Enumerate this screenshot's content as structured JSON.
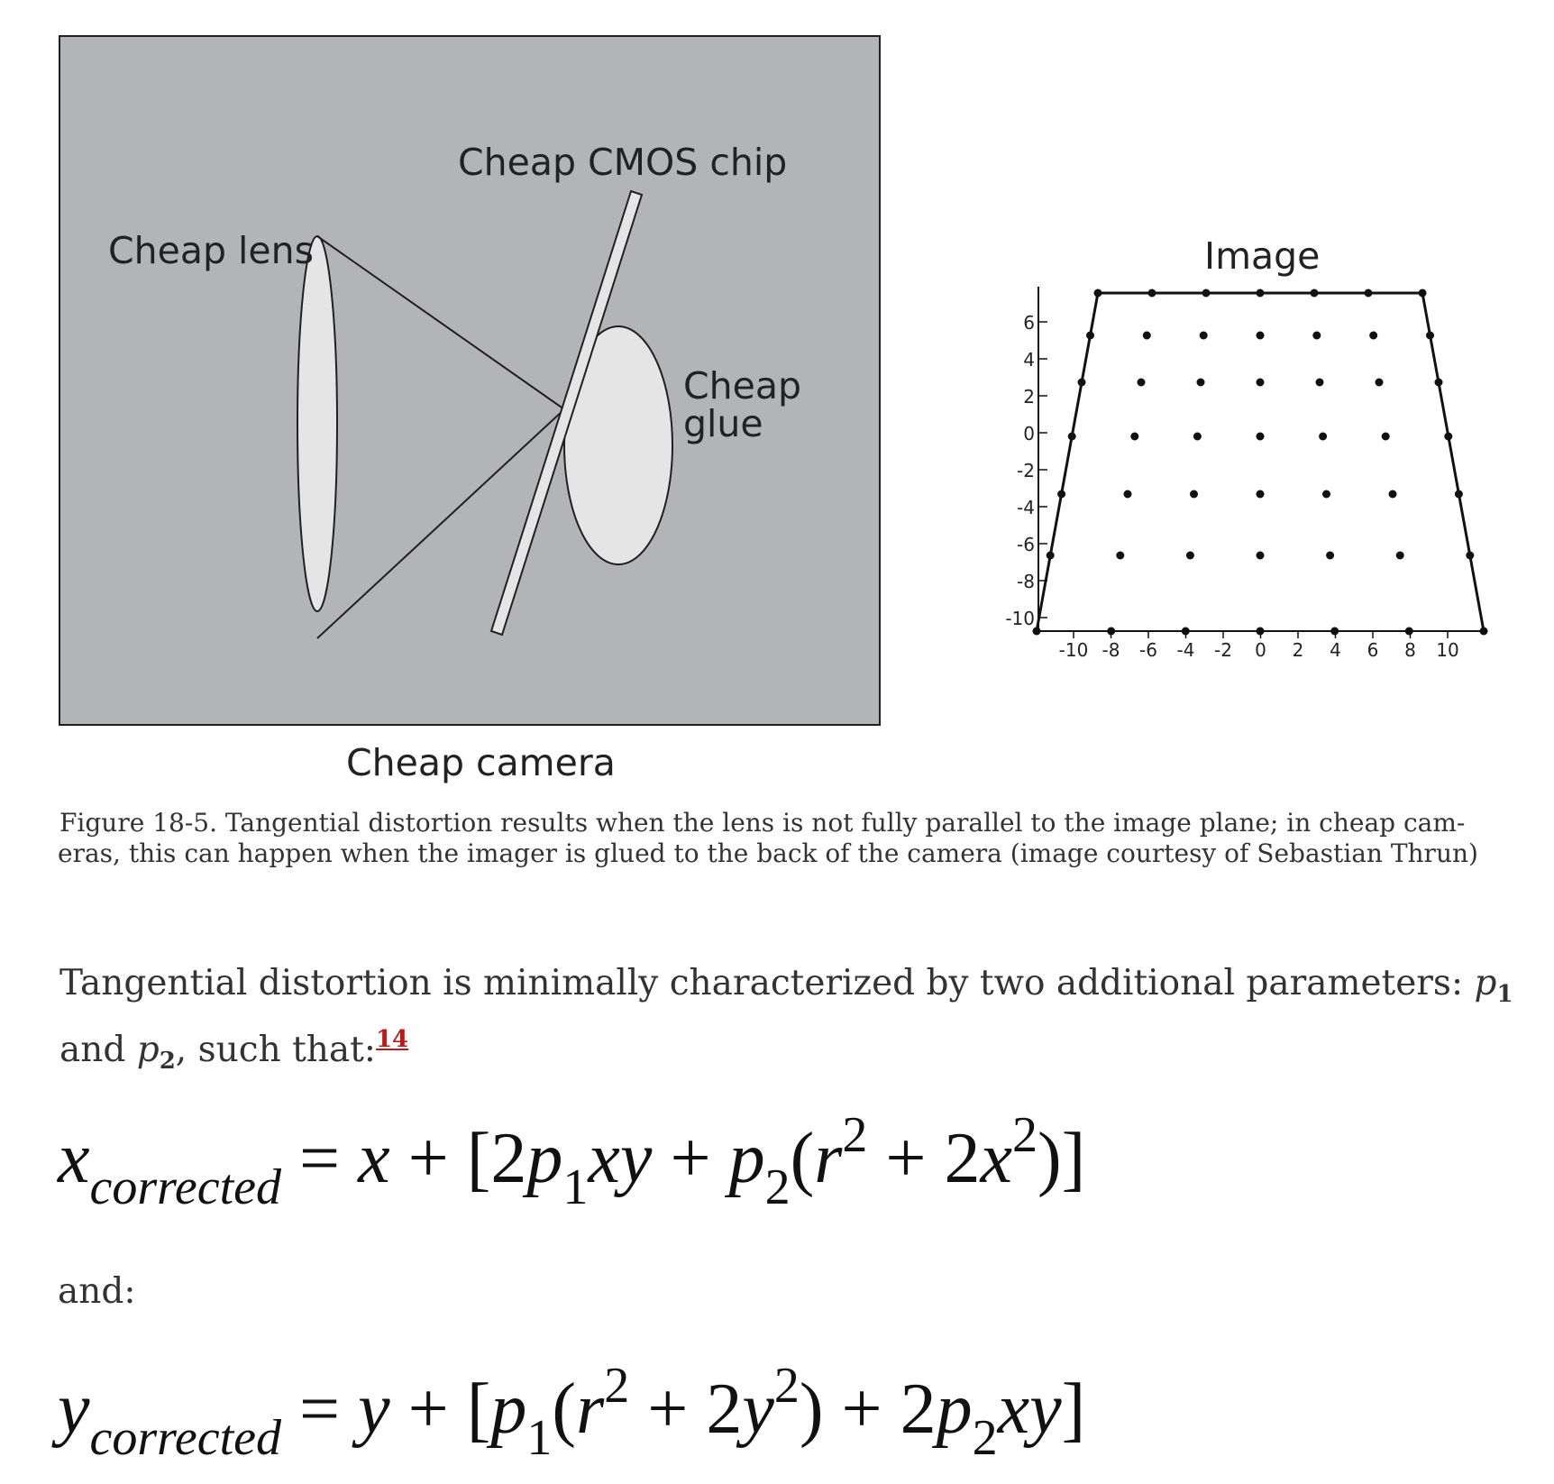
{
  "figure": {
    "left_panel": {
      "lens_label": "Cheap lens",
      "chip_label": "Cheap CMOS chip",
      "glue_label_line1": "Cheap",
      "glue_label_line2": "glue",
      "camera_label": "Cheap camera",
      "colors": {
        "panel": "#b3b4b7",
        "fill": "#e5e5e5",
        "stroke": "#231f20"
      }
    },
    "right_panel": {
      "title": "Image",
      "y_ticks": [
        "6",
        "4",
        "2",
        "0",
        "-2",
        "-4",
        "-6",
        "-8",
        "-10"
      ],
      "x_ticks": [
        "-10",
        "-8",
        "-6",
        "-4",
        "-2",
        "0",
        "2",
        "4",
        "6",
        "8",
        "10"
      ]
    },
    "caption_line1": "Figure 18-5. Tangential distortion results when the lens is not fully parallel to the image plane; in cheap cam-",
    "caption_line2": "eras, this can happen when the imager is glued to the back of the camera (image courtesy of Sebastian Thrun)"
  },
  "paragraph": {
    "line1_text": "Tangential distortion is minimally characterized by two additional parameters: ",
    "p1_var": "p",
    "p1_sub": "1",
    "line2_prefix": "and ",
    "p2_var": "p",
    "p2_sub": "2",
    "line2_suffix": ", such that:",
    "footnote": "14"
  },
  "equations": {
    "x_corrected": "x_corrected = x + [2p_1xy + p_2(r^2 + 2x^2)]",
    "and_text": "and:",
    "y_corrected": "y_corrected = y + [p_1(r^2 + 2y^2) + 2p_2xy]"
  }
}
